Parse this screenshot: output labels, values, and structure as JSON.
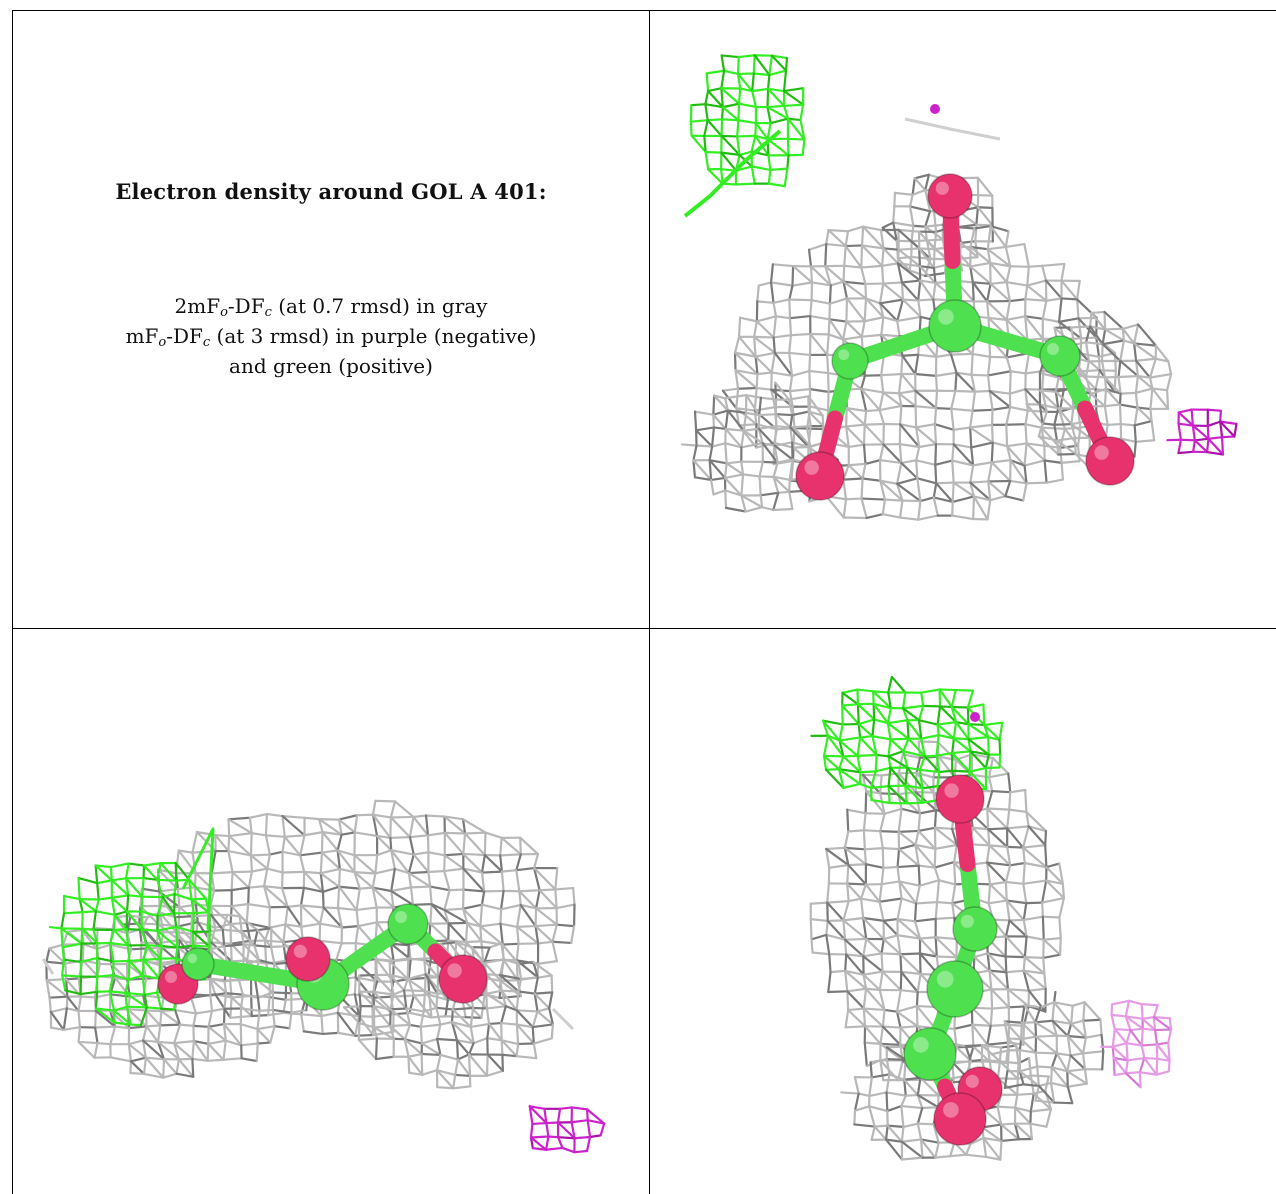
{
  "caption": {
    "title": "Electron density around GOL A 401:",
    "line1": {
      "prefix": "2mF",
      "sub1": "o",
      "mid": "-DF",
      "sub2": "c",
      "suffix": " (at 0.7 rmsd) in gray"
    },
    "line2": {
      "prefix": "mF",
      "sub1": "o",
      "mid": "-DF",
      "sub2": "c",
      "suffix": " (at 3 rmsd) in purple (negative)"
    },
    "line3": "and green (positive)"
  },
  "colors": {
    "mesh_2fofc": "#b8b8b8",
    "mesh_2fofc_dark": "#7a7a7a",
    "diff_positive": "#33ee22",
    "diff_negative": "#cc22cc",
    "diff_negative_light": "#e59be5",
    "carbon": "#4ee04e",
    "oxygen": "#e8326e"
  },
  "panels": [
    {
      "name": "view-top-right",
      "view": "top-down"
    },
    {
      "name": "view-bottom-left",
      "view": "side"
    },
    {
      "name": "view-bottom-right",
      "view": "end-on"
    }
  ]
}
